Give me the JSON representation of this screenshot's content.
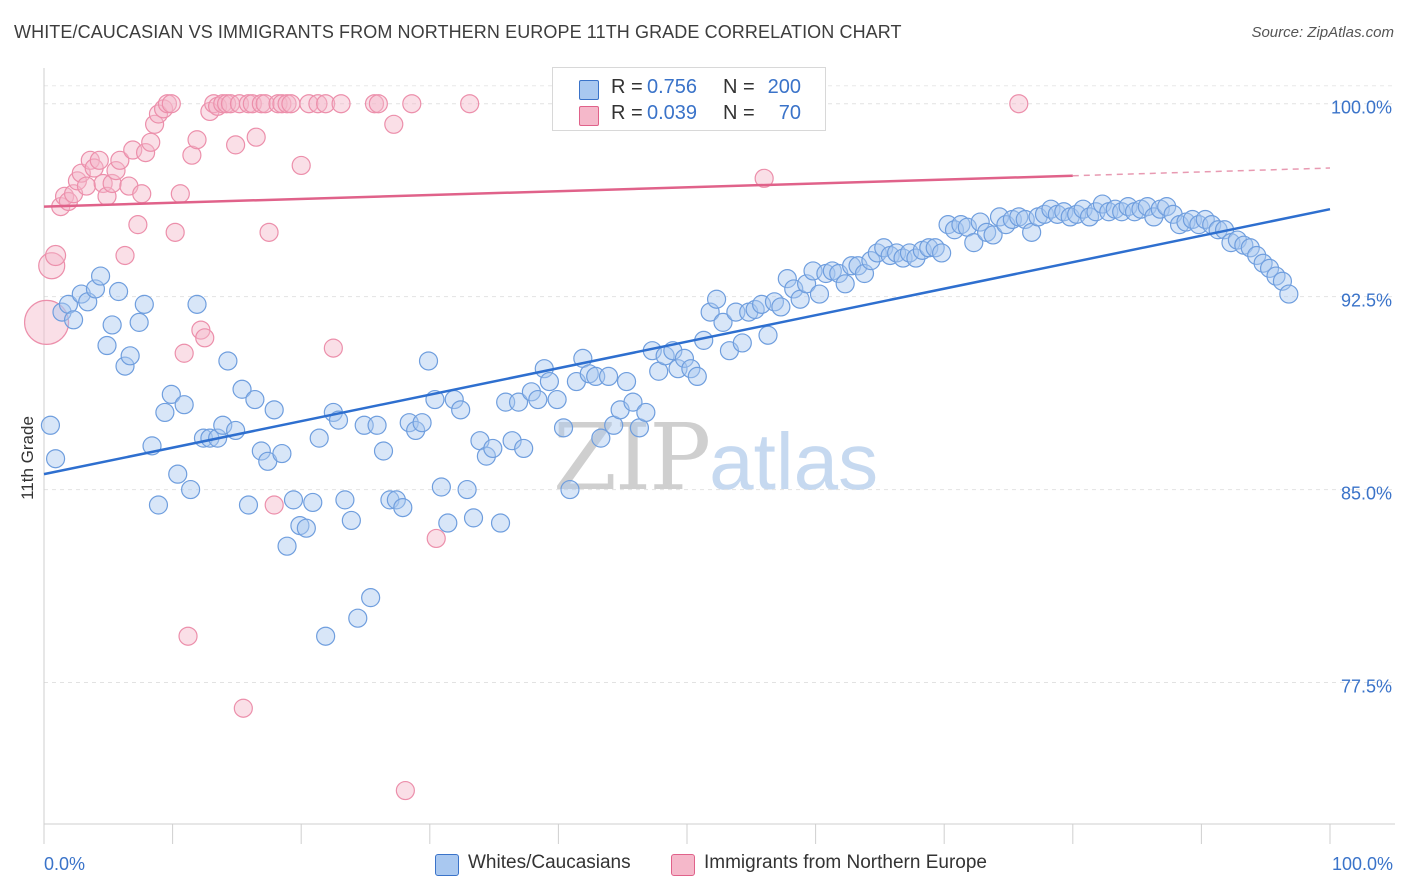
{
  "title": "WHITE/CAUCASIAN VS IMMIGRANTS FROM NORTHERN EUROPE 11TH GRADE CORRELATION CHART",
  "source": "Source: ZipAtlas.com",
  "watermark": {
    "zip": "ZIP",
    "atlas": "atlas"
  },
  "legend": {
    "rows": [
      {
        "r_label": "R =",
        "r_value": "0.756",
        "n_label": "N =",
        "n_value": "200",
        "color": "#a9c8f0"
      },
      {
        "r_label": "R =",
        "r_value": "0.039",
        "n_label": "N =",
        "n_value": "70",
        "color": "#f5b8ca"
      }
    ]
  },
  "bottom_legend": {
    "items": [
      {
        "label": "Whites/Caucasians",
        "color": "#a9c8f0"
      },
      {
        "label": "Immigrants from Northern Europe",
        "color": "#f5b8ca"
      }
    ]
  },
  "chart_data": {
    "type": "scatter",
    "title": "WHITE/CAUCASIAN VS IMMIGRANTS FROM NORTHERN EUROPE 11TH GRADE CORRELATION CHART",
    "xlabel": "",
    "ylabel": "11th Grade",
    "xlim": [
      0,
      100
    ],
    "ylim": [
      72.0,
      101.0
    ],
    "x_tick_labels": [
      "0.0%",
      "100.0%"
    ],
    "y_ticks": [
      77.5,
      85.0,
      92.5,
      100.0
    ],
    "y_tick_labels": [
      "77.5%",
      "85.0%",
      "92.5%",
      "100.0%"
    ],
    "grid": true,
    "colors": {
      "blue": "#3a73c9",
      "blue_fill": "#a9c8f0",
      "pink": "#e0628a",
      "pink_fill": "#f5b8ca"
    },
    "series": [
      {
        "name": "Whites/Caucasians",
        "color": "#3a73c9",
        "trend": {
          "x0": 0,
          "y0": 85.6,
          "x1": 100,
          "y1": 95.9
        },
        "points": [
          [
            0.5,
            87.5
          ],
          [
            0.9,
            86.2
          ],
          [
            1.4,
            91.9
          ],
          [
            1.9,
            92.2
          ],
          [
            2.3,
            91.6
          ],
          [
            2.9,
            92.6
          ],
          [
            3.4,
            92.3
          ],
          [
            4.0,
            92.8
          ],
          [
            4.4,
            93.3
          ],
          [
            4.9,
            90.6
          ],
          [
            5.3,
            91.4
          ],
          [
            5.8,
            92.7
          ],
          [
            6.3,
            89.8
          ],
          [
            6.7,
            90.2
          ],
          [
            7.4,
            91.5
          ],
          [
            7.8,
            92.2
          ],
          [
            8.4,
            86.7
          ],
          [
            8.9,
            84.4
          ],
          [
            9.4,
            88.0
          ],
          [
            9.9,
            88.7
          ],
          [
            10.4,
            85.6
          ],
          [
            10.9,
            88.3
          ],
          [
            11.4,
            85.0
          ],
          [
            11.9,
            92.2
          ],
          [
            12.4,
            87.0
          ],
          [
            12.9,
            87.0
          ],
          [
            13.5,
            87.0
          ],
          [
            13.9,
            87.5
          ],
          [
            14.3,
            90.0
          ],
          [
            14.9,
            87.3
          ],
          [
            15.4,
            88.9
          ],
          [
            15.9,
            84.4
          ],
          [
            16.4,
            88.5
          ],
          [
            16.9,
            86.5
          ],
          [
            17.4,
            86.1
          ],
          [
            17.9,
            88.1
          ],
          [
            18.5,
            86.4
          ],
          [
            18.9,
            82.8
          ],
          [
            19.4,
            84.6
          ],
          [
            19.9,
            83.6
          ],
          [
            20.4,
            83.5
          ],
          [
            20.9,
            84.5
          ],
          [
            21.4,
            87.0
          ],
          [
            21.9,
            79.3
          ],
          [
            22.5,
            88.0
          ],
          [
            22.9,
            87.7
          ],
          [
            23.4,
            84.6
          ],
          [
            23.9,
            83.8
          ],
          [
            24.4,
            80.0
          ],
          [
            24.9,
            87.5
          ],
          [
            25.4,
            80.8
          ],
          [
            25.9,
            87.5
          ],
          [
            26.4,
            86.5
          ],
          [
            26.9,
            84.6
          ],
          [
            27.4,
            84.6
          ],
          [
            27.9,
            84.3
          ],
          [
            28.4,
            87.6
          ],
          [
            28.9,
            87.3
          ],
          [
            29.4,
            87.6
          ],
          [
            29.9,
            90.0
          ],
          [
            30.4,
            88.5
          ],
          [
            30.9,
            85.1
          ],
          [
            31.4,
            83.7
          ],
          [
            31.9,
            88.5
          ],
          [
            32.4,
            88.1
          ],
          [
            32.9,
            85.0
          ],
          [
            33.4,
            83.9
          ],
          [
            33.9,
            86.9
          ],
          [
            34.4,
            86.3
          ],
          [
            34.9,
            86.6
          ],
          [
            35.5,
            83.7
          ],
          [
            35.9,
            88.4
          ],
          [
            36.4,
            86.9
          ],
          [
            36.9,
            88.4
          ],
          [
            37.3,
            86.6
          ],
          [
            37.9,
            88.8
          ],
          [
            38.4,
            88.5
          ],
          [
            38.9,
            89.7
          ],
          [
            39.3,
            89.2
          ],
          [
            39.9,
            88.5
          ],
          [
            40.4,
            87.4
          ],
          [
            40.9,
            85.0
          ],
          [
            41.4,
            89.2
          ],
          [
            41.9,
            90.1
          ],
          [
            42.4,
            89.5
          ],
          [
            42.9,
            89.4
          ],
          [
            43.3,
            87.0
          ],
          [
            43.9,
            89.4
          ],
          [
            44.3,
            87.5
          ],
          [
            44.8,
            88.1
          ],
          [
            45.3,
            89.2
          ],
          [
            45.8,
            88.4
          ],
          [
            46.3,
            87.4
          ],
          [
            46.8,
            88.0
          ],
          [
            47.3,
            90.4
          ],
          [
            47.8,
            89.6
          ],
          [
            48.3,
            90.2
          ],
          [
            48.9,
            90.4
          ],
          [
            49.3,
            89.7
          ],
          [
            49.8,
            90.1
          ],
          [
            50.3,
            89.7
          ],
          [
            50.8,
            89.4
          ],
          [
            51.3,
            90.8
          ],
          [
            51.8,
            91.9
          ],
          [
            52.3,
            92.4
          ],
          [
            52.8,
            91.5
          ],
          [
            53.3,
            90.4
          ],
          [
            53.8,
            91.9
          ],
          [
            54.3,
            90.7
          ],
          [
            54.8,
            91.9
          ],
          [
            55.3,
            92.0
          ],
          [
            55.8,
            92.2
          ],
          [
            56.3,
            91.0
          ],
          [
            56.8,
            92.3
          ],
          [
            57.3,
            92.1
          ],
          [
            57.8,
            93.2
          ],
          [
            58.3,
            92.8
          ],
          [
            58.8,
            92.4
          ],
          [
            59.3,
            93.0
          ],
          [
            59.8,
            93.5
          ],
          [
            60.3,
            92.6
          ],
          [
            60.8,
            93.4
          ],
          [
            61.3,
            93.5
          ],
          [
            61.8,
            93.4
          ],
          [
            62.3,
            93.0
          ],
          [
            62.8,
            93.7
          ],
          [
            63.3,
            93.7
          ],
          [
            63.8,
            93.4
          ],
          [
            64.3,
            93.9
          ],
          [
            64.8,
            94.2
          ],
          [
            65.3,
            94.4
          ],
          [
            65.8,
            94.1
          ],
          [
            66.3,
            94.2
          ],
          [
            66.8,
            94.0
          ],
          [
            67.3,
            94.2
          ],
          [
            67.8,
            94.0
          ],
          [
            68.3,
            94.3
          ],
          [
            68.8,
            94.4
          ],
          [
            69.3,
            94.4
          ],
          [
            69.8,
            94.2
          ],
          [
            70.3,
            95.3
          ],
          [
            70.8,
            95.1
          ],
          [
            71.3,
            95.3
          ],
          [
            71.8,
            95.2
          ],
          [
            72.3,
            94.6
          ],
          [
            72.8,
            95.4
          ],
          [
            73.3,
            95.0
          ],
          [
            73.8,
            94.9
          ],
          [
            74.3,
            95.6
          ],
          [
            74.8,
            95.3
          ],
          [
            75.3,
            95.5
          ],
          [
            75.8,
            95.6
          ],
          [
            76.3,
            95.5
          ],
          [
            76.8,
            95.0
          ],
          [
            77.3,
            95.6
          ],
          [
            77.8,
            95.7
          ],
          [
            78.3,
            95.9
          ],
          [
            78.8,
            95.7
          ],
          [
            79.3,
            95.8
          ],
          [
            79.8,
            95.6
          ],
          [
            80.3,
            95.7
          ],
          [
            80.8,
            95.9
          ],
          [
            81.3,
            95.6
          ],
          [
            81.8,
            95.8
          ],
          [
            82.3,
            96.1
          ],
          [
            82.8,
            95.8
          ],
          [
            83.3,
            95.9
          ],
          [
            83.8,
            95.8
          ],
          [
            84.3,
            96.0
          ],
          [
            84.8,
            95.8
          ],
          [
            85.3,
            95.9
          ],
          [
            85.8,
            96.0
          ],
          [
            86.3,
            95.6
          ],
          [
            86.8,
            95.9
          ],
          [
            87.3,
            96.0
          ],
          [
            87.8,
            95.7
          ],
          [
            88.3,
            95.3
          ],
          [
            88.8,
            95.4
          ],
          [
            89.3,
            95.5
          ],
          [
            89.8,
            95.3
          ],
          [
            90.3,
            95.5
          ],
          [
            90.8,
            95.3
          ],
          [
            91.3,
            95.1
          ],
          [
            91.8,
            95.1
          ],
          [
            92.3,
            94.6
          ],
          [
            92.8,
            94.7
          ],
          [
            93.3,
            94.5
          ],
          [
            93.8,
            94.4
          ],
          [
            94.3,
            94.1
          ],
          [
            94.8,
            93.8
          ],
          [
            95.3,
            93.6
          ],
          [
            95.8,
            93.3
          ],
          [
            96.3,
            93.1
          ],
          [
            96.8,
            92.6
          ]
        ]
      },
      {
        "name": "Immigrants from Northern Europe",
        "color": "#e0628a",
        "trend": {
          "x0": 0,
          "y0": 96.0,
          "x1": 80,
          "y1": 97.2,
          "dash_to_x": 100,
          "dash_to_y": 97.5
        },
        "points": [
          [
            0.2,
            91.5
          ],
          [
            0.6,
            93.7
          ],
          [
            0.9,
            94.1
          ],
          [
            1.3,
            96.0
          ],
          [
            1.6,
            96.4
          ],
          [
            1.9,
            96.2
          ],
          [
            2.3,
            96.5
          ],
          [
            2.6,
            97.0
          ],
          [
            2.9,
            97.3
          ],
          [
            3.3,
            96.8
          ],
          [
            3.6,
            97.8
          ],
          [
            3.9,
            97.5
          ],
          [
            4.3,
            97.8
          ],
          [
            4.6,
            96.9
          ],
          [
            4.9,
            96.4
          ],
          [
            5.3,
            96.9
          ],
          [
            5.6,
            97.4
          ],
          [
            5.9,
            97.8
          ],
          [
            6.3,
            94.1
          ],
          [
            6.6,
            96.8
          ],
          [
            6.9,
            98.2
          ],
          [
            7.3,
            95.3
          ],
          [
            7.6,
            96.5
          ],
          [
            7.9,
            98.1
          ],
          [
            8.3,
            98.5
          ],
          [
            8.6,
            99.2
          ],
          [
            8.9,
            99.6
          ],
          [
            9.3,
            99.8
          ],
          [
            9.6,
            100.0
          ],
          [
            9.9,
            100.0
          ],
          [
            10.2,
            95.0
          ],
          [
            10.6,
            96.5
          ],
          [
            10.9,
            90.3
          ],
          [
            11.2,
            79.3
          ],
          [
            11.5,
            98.0
          ],
          [
            11.9,
            98.6
          ],
          [
            12.2,
            91.2
          ],
          [
            12.5,
            90.9
          ],
          [
            12.9,
            99.7
          ],
          [
            13.2,
            100.0
          ],
          [
            13.5,
            99.9
          ],
          [
            13.9,
            100.0
          ],
          [
            14.2,
            100.0
          ],
          [
            14.5,
            100.0
          ],
          [
            14.9,
            98.4
          ],
          [
            15.2,
            100.0
          ],
          [
            15.5,
            76.5
          ],
          [
            15.9,
            100.0
          ],
          [
            16.2,
            100.0
          ],
          [
            16.5,
            98.7
          ],
          [
            16.9,
            100.0
          ],
          [
            17.2,
            100.0
          ],
          [
            17.5,
            95.0
          ],
          [
            17.9,
            84.4
          ],
          [
            18.2,
            100.0
          ],
          [
            18.5,
            100.0
          ],
          [
            18.9,
            100.0
          ],
          [
            19.2,
            100.0
          ],
          [
            20.0,
            97.6
          ],
          [
            20.6,
            100.0
          ],
          [
            21.3,
            100.0
          ],
          [
            21.9,
            100.0
          ],
          [
            22.5,
            90.5
          ],
          [
            23.1,
            100.0
          ],
          [
            25.7,
            100.0
          ],
          [
            26.0,
            100.0
          ],
          [
            27.2,
            99.2
          ],
          [
            28.1,
            73.3
          ],
          [
            28.6,
            100.0
          ],
          [
            30.5,
            83.1
          ],
          [
            33.1,
            100.0
          ],
          [
            56.0,
            97.1
          ],
          [
            75.8,
            100.0
          ]
        ]
      }
    ]
  }
}
